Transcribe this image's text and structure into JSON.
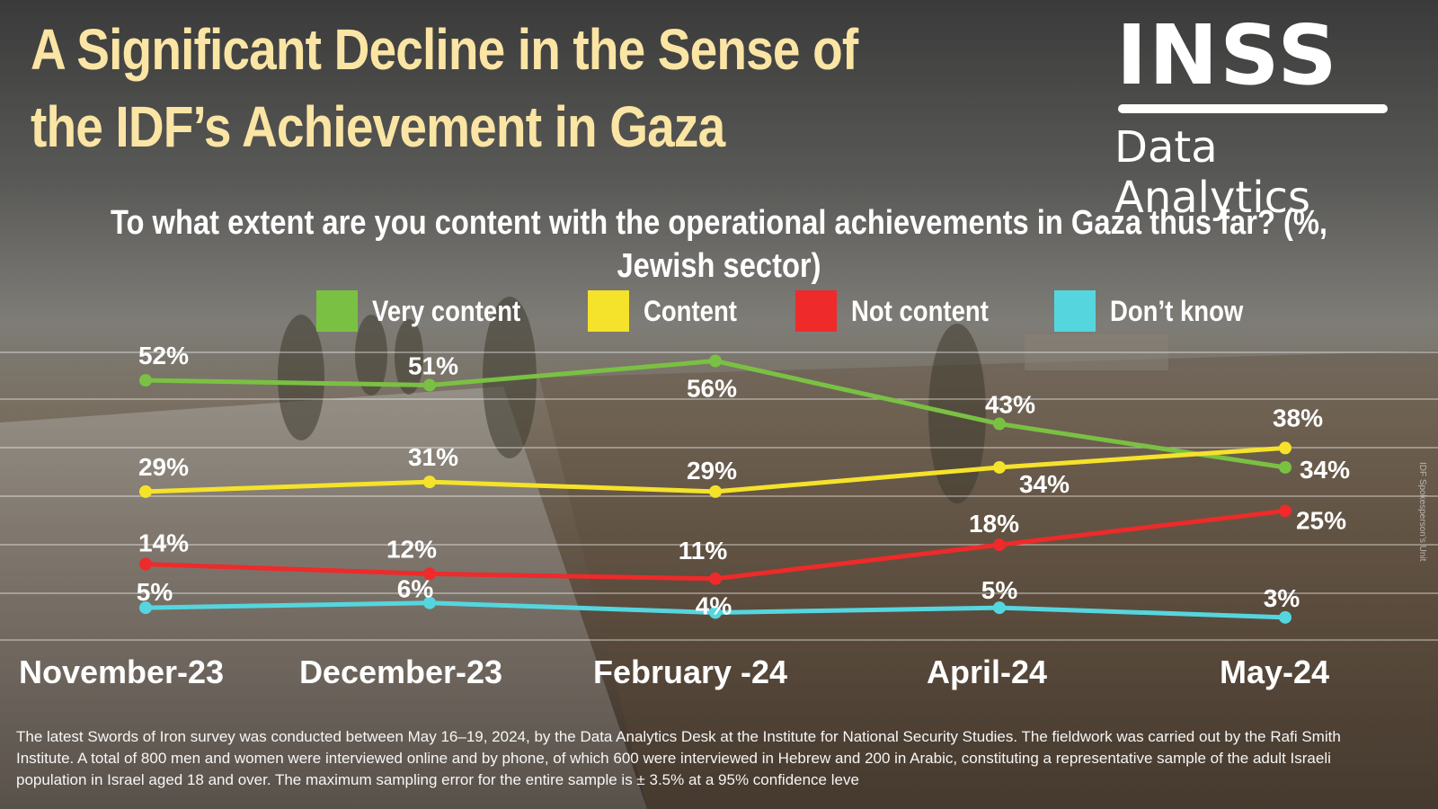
{
  "title": "A Significant Decline in the Sense of the IDF’s Achievement in Gaza",
  "logo": {
    "mark": "INSS",
    "sub": "Data Analytics"
  },
  "question": "To what extent are you content with the operational achievements in Gaza thus far? (%, Jewish sector)",
  "photo_credit": "IDF Spokesperson’s Unit",
  "footnote": "The latest Swords of Iron survey was conducted between May 16–19, 2024, by the Data Analytics Desk at the Institute for National Security Studies. The fieldwork was carried out by the Rafi Smith Institute. A total of 800 men and women were interviewed online and by phone, of which 600 were interviewed in Hebrew and 200 in Arabic, constituting a representative sample of the adult Israeli population in Israel aged 18 and over. The maximum sampling error for the entire sample is ± 3.5% at a 95% confidence leve",
  "colors": {
    "title": "#fbe5a4",
    "grid": "#ffffff"
  },
  "chart_data": {
    "type": "line",
    "categories": [
      "November-23",
      "December-23",
      "February -24",
      "April-24",
      "May-24"
    ],
    "ylim": [
      0,
      60
    ],
    "grid": true,
    "legend_position": "top-center",
    "series": [
      {
        "name": "Very content",
        "color": "#7ac143",
        "values": [
          52,
          51,
          56,
          43,
          34
        ],
        "labels": [
          "52%",
          "51%",
          "56%",
          "43%",
          "34%"
        ]
      },
      {
        "name": "Content",
        "color": "#f5e22a",
        "values": [
          29,
          31,
          29,
          34,
          38
        ],
        "labels": [
          "29%",
          "31%",
          "29%",
          "34%",
          "38%"
        ]
      },
      {
        "name": "Not content",
        "color": "#ee2a2a",
        "values": [
          14,
          12,
          11,
          18,
          25
        ],
        "labels": [
          "14%",
          "12%",
          "11%",
          "18%",
          "25%"
        ]
      },
      {
        "name": "Don’t know",
        "color": "#55d6de",
        "values": [
          5,
          6,
          4,
          5,
          3
        ],
        "labels": [
          "5%",
          "6%",
          "4%",
          "5%",
          "3%"
        ]
      }
    ]
  }
}
